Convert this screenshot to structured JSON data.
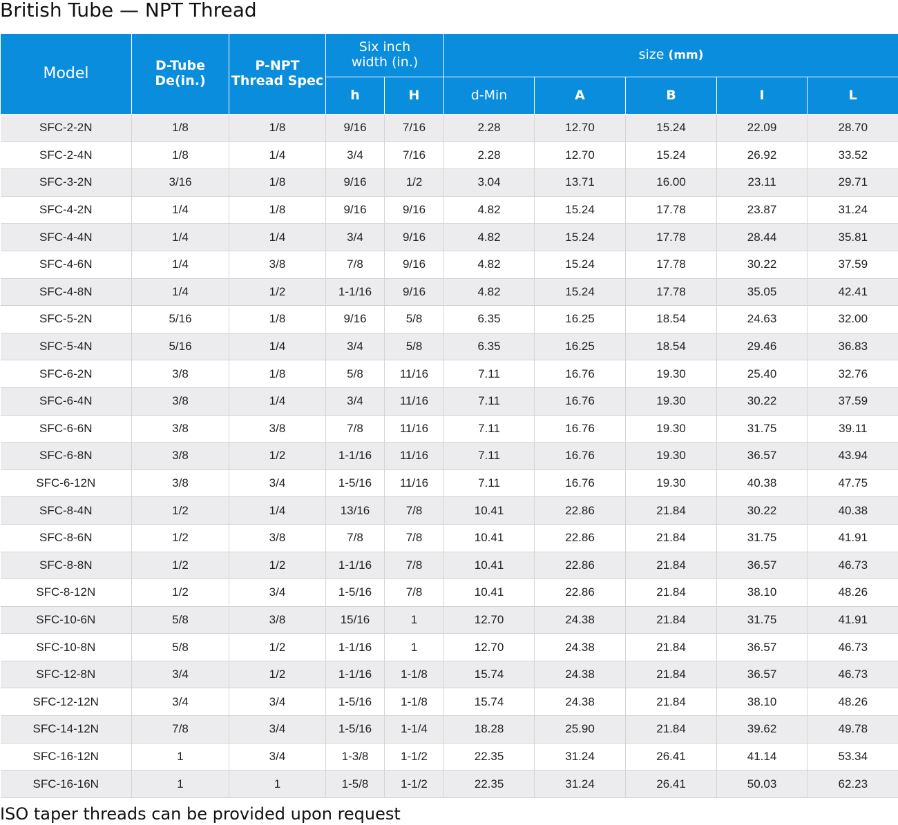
{
  "title": "British Tube — NPT Thread",
  "footnote": "ISO taper threads can be provided upon request",
  "header": {
    "model": "Model",
    "dtube_line1": "D-Tube",
    "dtube_line2": "De(in.)",
    "pnpt_line1": "P-NPT",
    "pnpt_line2": "Thread Spec",
    "six_line1": "Six inch",
    "six_line2": "width (in.)",
    "size_label": "size",
    "size_unit": "(mm)",
    "h": "h",
    "H": "H",
    "dmin": "d-Min",
    "A": "A",
    "B": "B",
    "I": "I",
    "L": "L"
  },
  "rows": [
    [
      "SFC-2-2N",
      "1/8",
      "1/8",
      "9/16",
      "7/16",
      "2.28",
      "12.70",
      "15.24",
      "22.09",
      "28.70"
    ],
    [
      "SFC-2-4N",
      "1/8",
      "1/4",
      "3/4",
      "7/16",
      "2.28",
      "12.70",
      "15.24",
      "26.92",
      "33.52"
    ],
    [
      "SFC-3-2N",
      "3/16",
      "1/8",
      "9/16",
      "1/2",
      "3.04",
      "13.71",
      "16.00",
      "23.11",
      "29.71"
    ],
    [
      "SFC-4-2N",
      "1/4",
      "1/8",
      "9/16",
      "9/16",
      "4.82",
      "15.24",
      "17.78",
      "23.87",
      "31.24"
    ],
    [
      "SFC-4-4N",
      "1/4",
      "1/4",
      "3/4",
      "9/16",
      "4.82",
      "15.24",
      "17.78",
      "28.44",
      "35.81"
    ],
    [
      "SFC-4-6N",
      "1/4",
      "3/8",
      "7/8",
      "9/16",
      "4.82",
      "15.24",
      "17.78",
      "30.22",
      "37.59"
    ],
    [
      "SFC-4-8N",
      "1/4",
      "1/2",
      "1-1/16",
      "9/16",
      "4.82",
      "15.24",
      "17.78",
      "35.05",
      "42.41"
    ],
    [
      "SFC-5-2N",
      "5/16",
      "1/8",
      "9/16",
      "5/8",
      "6.35",
      "16.25",
      "18.54",
      "24.63",
      "32.00"
    ],
    [
      "SFC-5-4N",
      "5/16",
      "1/4",
      "3/4",
      "5/8",
      "6.35",
      "16.25",
      "18.54",
      "29.46",
      "36.83"
    ],
    [
      "SFC-6-2N",
      "3/8",
      "1/8",
      "5/8",
      "11/16",
      "7.11",
      "16.76",
      "19.30",
      "25.40",
      "32.76"
    ],
    [
      "SFC-6-4N",
      "3/8",
      "1/4",
      "3/4",
      "11/16",
      "7.11",
      "16.76",
      "19.30",
      "30.22",
      "37.59"
    ],
    [
      "SFC-6-6N",
      "3/8",
      "3/8",
      "7/8",
      "11/16",
      "7.11",
      "16.76",
      "19.30",
      "31.75",
      "39.11"
    ],
    [
      "SFC-6-8N",
      "3/8",
      "1/2",
      "1-1/16",
      "11/16",
      "7.11",
      "16.76",
      "19.30",
      "36.57",
      "43.94"
    ],
    [
      "SFC-6-12N",
      "3/8",
      "3/4",
      "1-5/16",
      "11/16",
      "7.11",
      "16.76",
      "19.30",
      "40.38",
      "47.75"
    ],
    [
      "SFC-8-4N",
      "1/2",
      "1/4",
      "13/16",
      "7/8",
      "10.41",
      "22.86",
      "21.84",
      "30.22",
      "40.38"
    ],
    [
      "SFC-8-6N",
      "1/2",
      "3/8",
      "7/8",
      "7/8",
      "10.41",
      "22.86",
      "21.84",
      "31.75",
      "41.91"
    ],
    [
      "SFC-8-8N",
      "1/2",
      "1/2",
      "1-1/16",
      "7/8",
      "10.41",
      "22.86",
      "21.84",
      "36.57",
      "46.73"
    ],
    [
      "SFC-8-12N",
      "1/2",
      "3/4",
      "1-5/16",
      "7/8",
      "10.41",
      "22.86",
      "21.84",
      "38.10",
      "48.26"
    ],
    [
      "SFC-10-6N",
      "5/8",
      "3/8",
      "15/16",
      "1",
      "12.70",
      "24.38",
      "21.84",
      "31.75",
      "41.91"
    ],
    [
      "SFC-10-8N",
      "5/8",
      "1/2",
      "1-1/16",
      "1",
      "12.70",
      "24.38",
      "21.84",
      "36.57",
      "46.73"
    ],
    [
      "SFC-12-8N",
      "3/4",
      "1/2",
      "1-1/16",
      "1-1/8",
      "15.74",
      "24.38",
      "21.84",
      "36.57",
      "46.73"
    ],
    [
      "SFC-12-12N",
      "3/4",
      "3/4",
      "1-5/16",
      "1-1/8",
      "15.74",
      "24.38",
      "21.84",
      "38.10",
      "48.26"
    ],
    [
      "SFC-14-12N",
      "7/8",
      "3/4",
      "1-5/16",
      "1-1/4",
      "18.28",
      "25.90",
      "21.84",
      "39.62",
      "49.78"
    ],
    [
      "SFC-16-12N",
      "1",
      "3/4",
      "1-3/8",
      "1-1/2",
      "22.35",
      "31.24",
      "26.41",
      "41.14",
      "53.34"
    ],
    [
      "SFC-16-16N",
      "1",
      "1",
      "1-5/8",
      "1-1/2",
      "22.35",
      "31.24",
      "26.41",
      "50.03",
      "62.23"
    ]
  ]
}
